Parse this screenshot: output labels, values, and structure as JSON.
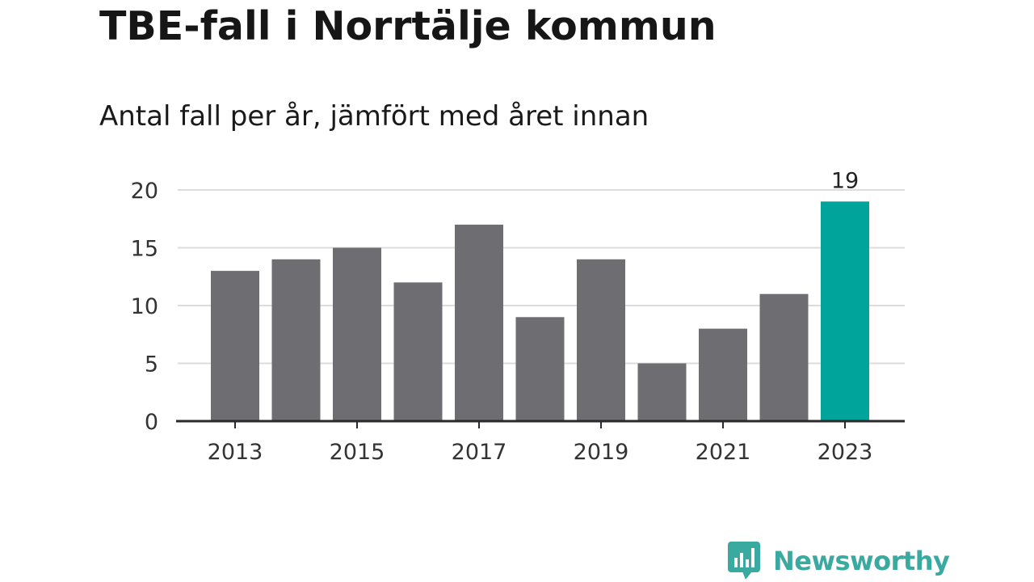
{
  "chart_data": {
    "type": "bar",
    "title": "TBE-fall i Norrtälje kommun",
    "subtitle": "Antal fall per år, jämfört med året innan",
    "categories": [
      "2013",
      "2014",
      "2015",
      "2016",
      "2017",
      "2018",
      "2019",
      "2020",
      "2021",
      "2022",
      "2023"
    ],
    "values": [
      13,
      14,
      15,
      12,
      17,
      9,
      14,
      5,
      8,
      11,
      19
    ],
    "x_tick_labels": [
      "2013",
      "2015",
      "2017",
      "2019",
      "2021",
      "2023"
    ],
    "y_ticks": [
      0,
      5,
      10,
      15,
      20
    ],
    "ylim": [
      0,
      20
    ],
    "highlight": {
      "category": "2023",
      "value_label": "19"
    },
    "grid": true,
    "xlabel": "",
    "ylabel": "",
    "colors": {
      "bar": "#6e6d72",
      "highlight": "#00a49a",
      "grid": "#dcdcdc",
      "axis": "#2a2a2a"
    }
  },
  "brand": {
    "name": "Newsworthy",
    "color": "#3aa9a0",
    "icon": "newsworthy-logo-icon"
  }
}
